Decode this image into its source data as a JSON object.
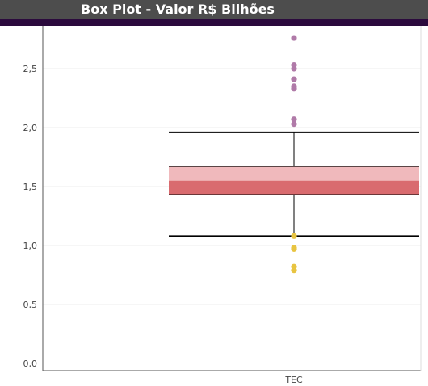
{
  "header": {
    "title": "Box Plot - Valor R$ Bilhões"
  },
  "colors": {
    "header_bg": "#4d4d4d",
    "header_band": "#2b0a3d",
    "box_upper": "#f0b9bc",
    "box_lower": "#d96b6f",
    "whisker": "#000000",
    "outlier_high": "#b07aa8",
    "outlier_low": "#e8c441",
    "grid": "#eeeeee",
    "axis": "#555555"
  },
  "chart_data": {
    "type": "box",
    "title": "Box Plot - Valor R$ Bilhões",
    "categories": [
      "TEC"
    ],
    "ylim": [
      0,
      2.85
    ],
    "yticks": [
      {
        "value": 0.0,
        "label": "0,0"
      },
      {
        "value": 0.5,
        "label": "0,5"
      },
      {
        "value": 1.0,
        "label": "1,0"
      },
      {
        "value": 1.5,
        "label": "1,5"
      },
      {
        "value": 2.0,
        "label": "2,0"
      },
      {
        "value": 2.5,
        "label": "2,5"
      }
    ],
    "grid": true,
    "boxes": [
      {
        "category": "TEC",
        "lower_whisker": 1.08,
        "q1": 1.43,
        "median": 1.55,
        "q3": 1.67,
        "upper_whisker": 1.96,
        "outliers_high": [
          2.76,
          2.53,
          2.5,
          2.41,
          2.35,
          2.33,
          2.07,
          2.03
        ],
        "outliers_low": [
          1.08,
          0.98,
          0.97,
          0.82,
          0.79
        ]
      }
    ]
  }
}
